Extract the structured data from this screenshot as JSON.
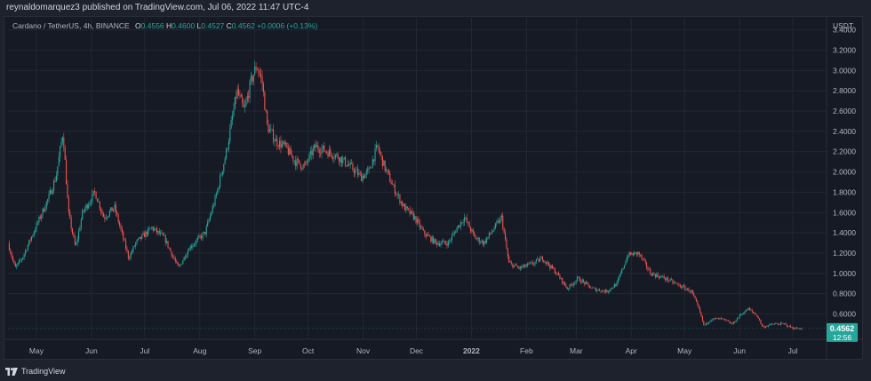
{
  "header": {
    "text": "reynaldomarquez3 published on TradingView.com, Jul 06, 2022 11:47 UTC-4"
  },
  "legend": {
    "symbol": "Cardano / TetherUS, 4h, BINANCE",
    "o_label": "O",
    "o_value": "0.4556",
    "h_label": "H",
    "h_value": "0.4600",
    "l_label": "L",
    "l_value": "0.4527",
    "c_label": "C",
    "c_value": "0.4562",
    "change": "+0.0006 (+0.13%)"
  },
  "footer": {
    "brand": "TradingView"
  },
  "colors": {
    "up": "#26a69a",
    "down": "#ef5350",
    "grid": "#232733",
    "badge": "#26a69a",
    "text": "#b2b5be"
  },
  "chart_data": {
    "type": "candlestick",
    "currency_label": "USDT",
    "ylim": [
      0.35,
      3.52
    ],
    "y_ticks": [
      "3.4000",
      "3.2000",
      "3.0000",
      "2.8000",
      "2.6000",
      "2.4000",
      "2.2000",
      "2.0000",
      "1.8000",
      "1.6000",
      "1.4000",
      "1.2000",
      "1.0000",
      "0.8000",
      "0.6000"
    ],
    "x_ticks": [
      {
        "label": "May",
        "date": "2021-05-01"
      },
      {
        "label": "Jun",
        "date": "2021-06-01"
      },
      {
        "label": "Jul",
        "date": "2021-07-01"
      },
      {
        "label": "Aug",
        "date": "2021-08-01"
      },
      {
        "label": "Sep",
        "date": "2021-09-01"
      },
      {
        "label": "Oct",
        "date": "2021-10-01"
      },
      {
        "label": "Nov",
        "date": "2021-11-01"
      },
      {
        "label": "Dec",
        "date": "2021-12-01"
      },
      {
        "label": "2022",
        "date": "2022-01-01"
      },
      {
        "label": "Feb",
        "date": "2022-02-01"
      },
      {
        "label": "Mar",
        "date": "2022-03-01"
      },
      {
        "label": "Apr",
        "date": "2022-04-01"
      },
      {
        "label": "May",
        "date": "2022-05-01"
      },
      {
        "label": "Jun",
        "date": "2022-06-01"
      },
      {
        "label": "Jul",
        "date": "2022-07-01"
      }
    ],
    "xlim": [
      "2021-04-15",
      "2022-07-20"
    ],
    "price_path": [
      [
        "2021-04-15",
        1.3
      ],
      [
        "2021-04-19",
        1.05
      ],
      [
        "2021-04-23",
        1.15
      ],
      [
        "2021-04-28",
        1.35
      ],
      [
        "2021-05-03",
        1.55
      ],
      [
        "2021-05-08",
        1.75
      ],
      [
        "2021-05-12",
        1.95
      ],
      [
        "2021-05-16",
        2.4
      ],
      [
        "2021-05-19",
        1.6
      ],
      [
        "2021-05-23",
        1.25
      ],
      [
        "2021-05-27",
        1.6
      ],
      [
        "2021-06-03",
        1.8
      ],
      [
        "2021-06-08",
        1.55
      ],
      [
        "2021-06-14",
        1.65
      ],
      [
        "2021-06-22",
        1.15
      ],
      [
        "2021-06-26",
        1.3
      ],
      [
        "2021-07-05",
        1.45
      ],
      [
        "2021-07-12",
        1.35
      ],
      [
        "2021-07-20",
        1.05
      ],
      [
        "2021-07-26",
        1.25
      ],
      [
        "2021-08-04",
        1.4
      ],
      [
        "2021-08-10",
        1.75
      ],
      [
        "2021-08-16",
        2.2
      ],
      [
        "2021-08-22",
        2.8
      ],
      [
        "2021-08-26",
        2.6
      ],
      [
        "2021-08-30",
        2.9
      ],
      [
        "2021-09-02",
        3.05
      ],
      [
        "2021-09-05",
        2.9
      ],
      [
        "2021-09-08",
        2.45
      ],
      [
        "2021-09-13",
        2.3
      ],
      [
        "2021-09-18",
        2.25
      ],
      [
        "2021-09-24",
        2.1
      ],
      [
        "2021-09-29",
        2.05
      ],
      [
        "2021-10-05",
        2.25
      ],
      [
        "2021-10-12",
        2.2
      ],
      [
        "2021-10-18",
        2.15
      ],
      [
        "2021-10-25",
        2.05
      ],
      [
        "2021-10-31",
        1.95
      ],
      [
        "2021-11-04",
        2.0
      ],
      [
        "2021-11-09",
        2.25
      ],
      [
        "2021-11-13",
        2.05
      ],
      [
        "2021-11-18",
        1.85
      ],
      [
        "2021-11-24",
        1.65
      ],
      [
        "2021-11-30",
        1.55
      ],
      [
        "2021-12-05",
        1.4
      ],
      [
        "2021-12-12",
        1.3
      ],
      [
        "2021-12-19",
        1.3
      ],
      [
        "2021-12-24",
        1.45
      ],
      [
        "2021-12-28",
        1.55
      ],
      [
        "2022-01-03",
        1.35
      ],
      [
        "2022-01-08",
        1.3
      ],
      [
        "2022-01-14",
        1.45
      ],
      [
        "2022-01-18",
        1.55
      ],
      [
        "2022-01-22",
        1.1
      ],
      [
        "2022-01-28",
        1.05
      ],
      [
        "2022-02-05",
        1.1
      ],
      [
        "2022-02-10",
        1.15
      ],
      [
        "2022-02-18",
        1.0
      ],
      [
        "2022-02-24",
        0.85
      ],
      [
        "2022-03-02",
        0.95
      ],
      [
        "2022-03-10",
        0.85
      ],
      [
        "2022-03-18",
        0.82
      ],
      [
        "2022-03-24",
        0.9
      ],
      [
        "2022-03-30",
        1.18
      ],
      [
        "2022-04-05",
        1.2
      ],
      [
        "2022-04-12",
        1.0
      ],
      [
        "2022-04-20",
        0.95
      ],
      [
        "2022-04-28",
        0.88
      ],
      [
        "2022-05-05",
        0.82
      ],
      [
        "2022-05-09",
        0.65
      ],
      [
        "2022-05-12",
        0.48
      ],
      [
        "2022-05-16",
        0.55
      ],
      [
        "2022-05-22",
        0.55
      ],
      [
        "2022-05-28",
        0.5
      ],
      [
        "2022-06-02",
        0.6
      ],
      [
        "2022-06-06",
        0.65
      ],
      [
        "2022-06-11",
        0.58
      ],
      [
        "2022-06-14",
        0.47
      ],
      [
        "2022-06-20",
        0.5
      ],
      [
        "2022-06-26",
        0.5
      ],
      [
        "2022-07-01",
        0.46
      ],
      [
        "2022-07-06",
        0.456
      ]
    ],
    "last_price": "0.4562",
    "last_price_value": 0.4562,
    "countdown": "12:56"
  }
}
